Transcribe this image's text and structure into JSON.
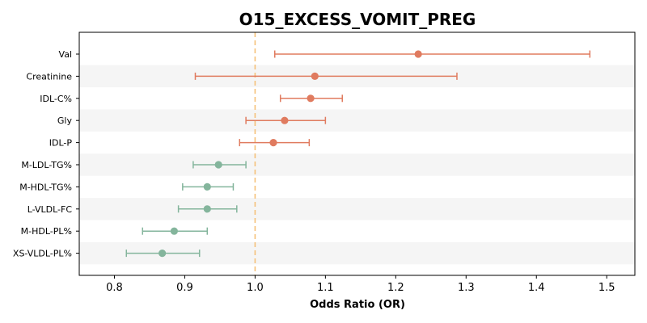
{
  "chart_data": {
    "type": "forest",
    "title": "O15_EXCESS_VOMIT_PREG",
    "xlabel": "Odds Ratio (OR)",
    "xlim": [
      0.75,
      1.54
    ],
    "xticks": [
      0.8,
      0.9,
      1.0,
      1.1,
      1.2,
      1.3,
      1.4,
      1.5
    ],
    "xtick_labels": [
      "0.8",
      "0.9",
      "1.0",
      "1.1",
      "1.2",
      "1.3",
      "1.4",
      "1.5"
    ],
    "reference_line": 1.0,
    "rows": [
      {
        "label": "Val",
        "or": 1.232,
        "ci_low": 1.028,
        "ci_high": 1.476
      },
      {
        "label": "Creatinine",
        "or": 1.085,
        "ci_low": 0.915,
        "ci_high": 1.287
      },
      {
        "label": "IDL-C%",
        "or": 1.079,
        "ci_low": 1.036,
        "ci_high": 1.124
      },
      {
        "label": "Gly",
        "or": 1.042,
        "ci_low": 0.987,
        "ci_high": 1.1
      },
      {
        "label": "IDL-P",
        "or": 1.026,
        "ci_low": 0.978,
        "ci_high": 1.077
      },
      {
        "label": "M-LDL-TG%",
        "or": 0.948,
        "ci_low": 0.912,
        "ci_high": 0.987
      },
      {
        "label": "M-HDL-TG%",
        "or": 0.932,
        "ci_low": 0.897,
        "ci_high": 0.969
      },
      {
        "label": "L-VLDL-FC",
        "or": 0.932,
        "ci_low": 0.891,
        "ci_high": 0.974
      },
      {
        "label": "M-HDL-PL%",
        "or": 0.885,
        "ci_low": 0.84,
        "ci_high": 0.932
      },
      {
        "label": "XS-VLDL-PL%",
        "or": 0.868,
        "ci_low": 0.817,
        "ci_high": 0.921
      }
    ],
    "colors": {
      "risk": "#e07b5f",
      "protective": "#84b59c",
      "reference_line": "#f5c27a",
      "band": "#f5f5f5"
    },
    "grid": false
  }
}
